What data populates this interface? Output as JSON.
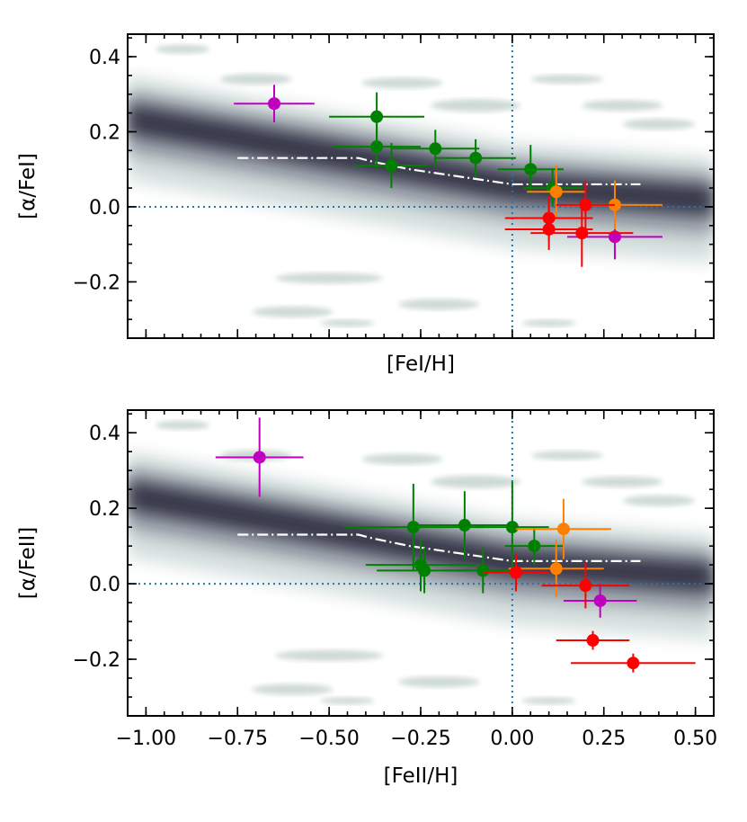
{
  "chart_data": [
    {
      "type": "scatter",
      "xlabel": "[FeI/H]",
      "ylabel": "[α/FeI]",
      "xlim": [
        -1.05,
        0.55
      ],
      "ylim": [
        -0.35,
        0.46
      ],
      "xticks": [
        -1.0,
        -0.75,
        -0.5,
        -0.25,
        0.0,
        0.25,
        0.5
      ],
      "xticklabels": [
        "",
        "",
        "",
        "",
        "",
        "",
        ""
      ],
      "yticks": [
        -0.2,
        0.0,
        0.2,
        0.4
      ],
      "yticklabels": [
        "−0.2",
        "0.0",
        "0.2",
        "0.4"
      ],
      "reference_lines": {
        "x": 0.0,
        "y": 0.0
      },
      "trend_line": {
        "x": [
          -0.75,
          -0.42,
          -0.38,
          -0.28,
          0.0,
          0.35
        ],
        "y": [
          0.13,
          0.13,
          0.12,
          0.1,
          0.06,
          0.06
        ]
      },
      "series": [
        {
          "color": "#bf00bf",
          "points": [
            {
              "x": -0.65,
              "y": 0.275,
              "xerr": 0.11,
              "yerr": 0.05
            },
            {
              "x": 0.28,
              "y": -0.08,
              "xerr": 0.13,
              "yerr": 0.06
            }
          ]
        },
        {
          "color": "#008000",
          "points": [
            {
              "x": -0.37,
              "y": 0.24,
              "xerr": 0.13,
              "yerr": 0.065
            },
            {
              "x": -0.37,
              "y": 0.16,
              "xerr": 0.12,
              "yerr": 0.06
            },
            {
              "x": -0.33,
              "y": 0.11,
              "xerr": 0.1,
              "yerr": 0.06
            },
            {
              "x": -0.21,
              "y": 0.155,
              "xerr": 0.12,
              "yerr": 0.05
            },
            {
              "x": -0.1,
              "y": 0.13,
              "xerr": 0.11,
              "yerr": 0.05
            },
            {
              "x": 0.05,
              "y": 0.1,
              "xerr": 0.09,
              "yerr": 0.065
            },
            {
              "x": 0.11,
              "y": 0.05,
              "xerr": 0.08,
              "yerr": 0.05
            }
          ]
        },
        {
          "color": "#ff8000",
          "points": [
            {
              "x": 0.12,
              "y": 0.04,
              "xerr": 0.08,
              "yerr": 0.07
            },
            {
              "x": 0.28,
              "y": 0.005,
              "xerr": 0.13,
              "yerr": 0.065
            }
          ]
        },
        {
          "color": "#ff0000",
          "points": [
            {
              "x": 0.1,
              "y": -0.03,
              "xerr": 0.12,
              "yerr": 0.06
            },
            {
              "x": 0.2,
              "y": 0.005,
              "xerr": 0.08,
              "yerr": 0.065
            },
            {
              "x": 0.1,
              "y": -0.06,
              "xerr": 0.12,
              "yerr": 0.055
            },
            {
              "x": 0.19,
              "y": -0.07,
              "xerr": 0.14,
              "yerr": 0.09
            }
          ]
        }
      ]
    },
    {
      "type": "scatter",
      "xlabel": "[FeII/H]",
      "ylabel": "[α/FeII]",
      "xlim": [
        -1.05,
        0.55
      ],
      "ylim": [
        -0.35,
        0.46
      ],
      "xticks": [
        -1.0,
        -0.75,
        -0.5,
        -0.25,
        0.0,
        0.25,
        0.5
      ],
      "xticklabels": [
        "−1.00",
        "−0.75",
        "−0.50",
        "−0.25",
        "0.00",
        "0.25",
        "0.50"
      ],
      "yticks": [
        -0.2,
        0.0,
        0.2,
        0.4
      ],
      "yticklabels": [
        "−0.2",
        "0.0",
        "0.2",
        "0.4"
      ],
      "reference_lines": {
        "x": 0.0,
        "y": 0.0
      },
      "trend_line": {
        "x": [
          -0.75,
          -0.42,
          -0.38,
          -0.28,
          0.0,
          0.35
        ],
        "y": [
          0.13,
          0.13,
          0.12,
          0.1,
          0.06,
          0.06
        ]
      },
      "series": [
        {
          "color": "#bf00bf",
          "points": [
            {
              "x": -0.69,
              "y": 0.335,
              "xerr": 0.12,
              "yerr": 0.105
            },
            {
              "x": 0.24,
              "y": -0.045,
              "xerr": 0.1,
              "yerr": 0.045
            }
          ]
        },
        {
          "color": "#008000",
          "points": [
            {
              "x": -0.27,
              "y": 0.15,
              "xerr": 0.19,
              "yerr": 0.115
            },
            {
              "x": -0.13,
              "y": 0.155,
              "xerr": 0.13,
              "yerr": 0.09
            },
            {
              "x": 0.0,
              "y": 0.15,
              "xerr": 0.1,
              "yerr": 0.12
            },
            {
              "x": -0.25,
              "y": 0.05,
              "xerr": 0.15,
              "yerr": 0.07
            },
            {
              "x": -0.24,
              "y": 0.035,
              "xerr": 0.13,
              "yerr": 0.06
            },
            {
              "x": -0.08,
              "y": 0.035,
              "xerr": 0.1,
              "yerr": 0.06
            },
            {
              "x": 0.06,
              "y": 0.1,
              "xerr": 0.08,
              "yerr": 0.05
            }
          ]
        },
        {
          "color": "#ff8000",
          "points": [
            {
              "x": 0.14,
              "y": 0.145,
              "xerr": 0.13,
              "yerr": 0.08
            },
            {
              "x": 0.12,
              "y": 0.04,
              "xerr": 0.13,
              "yerr": 0.075
            }
          ]
        },
        {
          "color": "#ff0000",
          "points": [
            {
              "x": 0.01,
              "y": 0.03,
              "xerr": 0.09,
              "yerr": 0.05
            },
            {
              "x": 0.2,
              "y": -0.005,
              "xerr": 0.12,
              "yerr": 0.06
            },
            {
              "x": 0.22,
              "y": -0.15,
              "xerr": 0.1,
              "yerr": 0.025
            },
            {
              "x": 0.33,
              "y": -0.21,
              "xerr": 0.17,
              "yerr": 0.025
            }
          ]
        }
      ]
    }
  ]
}
